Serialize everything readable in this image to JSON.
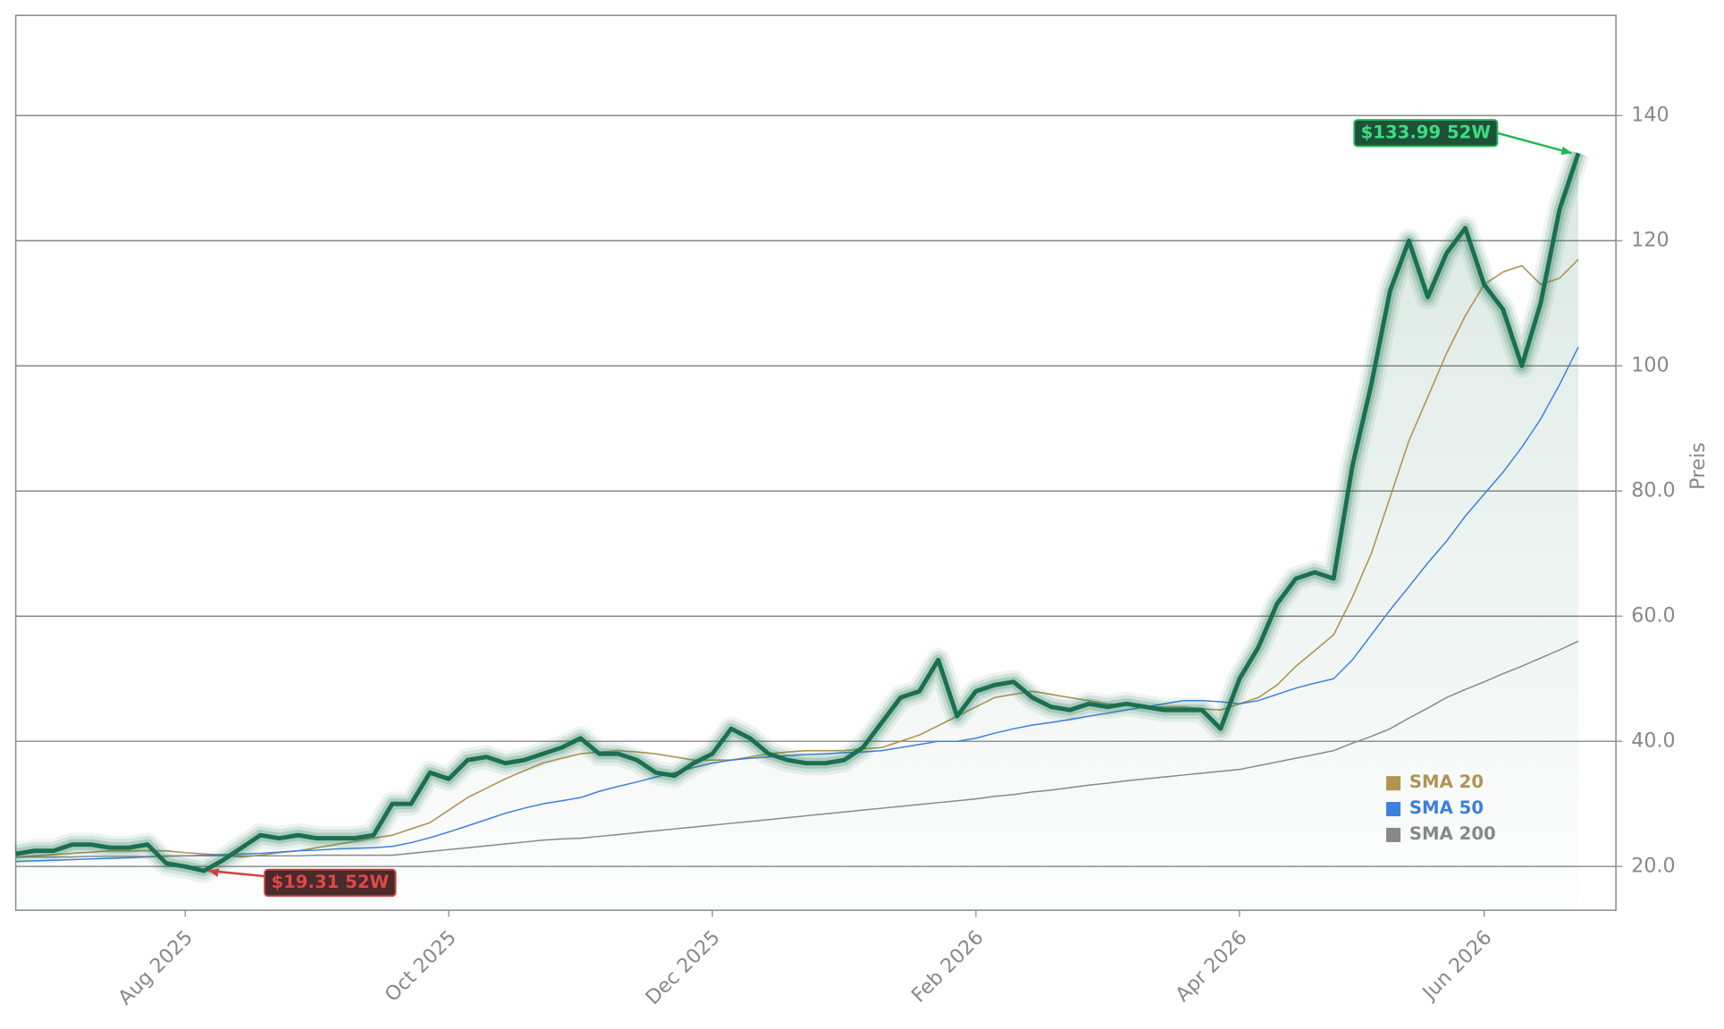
{
  "chart_data": {
    "type": "line",
    "y_label": "Preis",
    "categories": [
      null,
      null,
      null,
      null,
      null,
      null,
      null,
      null,
      null,
      "Aug 2025",
      null,
      null,
      null,
      null,
      null,
      null,
      null,
      null,
      null,
      null,
      null,
      null,
      null,
      "Oct 2025",
      null,
      null,
      null,
      null,
      null,
      null,
      null,
      null,
      null,
      null,
      null,
      null,
      null,
      "Dec 2025",
      null,
      null,
      null,
      null,
      null,
      null,
      null,
      null,
      null,
      null,
      null,
      null,
      null,
      "Feb 2026",
      null,
      null,
      null,
      null,
      null,
      null,
      null,
      null,
      null,
      null,
      null,
      null,
      null,
      "Apr 2026",
      null,
      null,
      null,
      null,
      null,
      null,
      null,
      null,
      null,
      null,
      null,
      null,
      "Jun 2026",
      null,
      null,
      null,
      null,
      null
    ],
    "series": [
      {
        "color": "#1a7050",
        "values": [
          22,
          22.5,
          22.5,
          23.5,
          23.5,
          23,
          23,
          23.5,
          20.5,
          20,
          19.31,
          21,
          23,
          25,
          24.5,
          25,
          24.5,
          24.5,
          24.5,
          25,
          30,
          30,
          35,
          34,
          37,
          37.5,
          36.5,
          37,
          38,
          39,
          40.5,
          38,
          38,
          37,
          35,
          34.5,
          36.5,
          38,
          42,
          40.5,
          38,
          37,
          36.5,
          36.5,
          37,
          39,
          43,
          47,
          48,
          53,
          44,
          48,
          49,
          49.5,
          47,
          45.5,
          45,
          46,
          45.5,
          46,
          45.5,
          45,
          45,
          45,
          42,
          50,
          55,
          62,
          66,
          67,
          66,
          84,
          97,
          112,
          120,
          111,
          118,
          122,
          113,
          109,
          100,
          110,
          125,
          133.99
        ]
      },
      {
        "name": "SMA 20",
        "color": "#b09550",
        "values": [
          21.5,
          21.7,
          21.9,
          22.1,
          22.3,
          22.5,
          22.5,
          22.5,
          22.5,
          22.2,
          22,
          21.8,
          21.5,
          21.8,
          22.2,
          22.5,
          23,
          23.5,
          24,
          24.5,
          25,
          26,
          27,
          29,
          31,
          32.5,
          34,
          35.3,
          36.5,
          37.3,
          38,
          38.3,
          38.5,
          38.3,
          38,
          37.5,
          37,
          37,
          37,
          37.5,
          38,
          38.3,
          38.5,
          38.5,
          38.5,
          38.8,
          39,
          40,
          41,
          42.5,
          44,
          45.5,
          47,
          47.5,
          48,
          47.5,
          47,
          46.5,
          46,
          45.8,
          45.5,
          45.5,
          45.5,
          45.2,
          45,
          46,
          47,
          49,
          52,
          54.5,
          57,
          63,
          70,
          79,
          88,
          95,
          102,
          108,
          113,
          115,
          116,
          113,
          114,
          117
        ]
      },
      {
        "name": "SMA 50",
        "color": "#3b7fe0",
        "values": [
          20.8,
          20.9,
          21,
          21.1,
          21.2,
          21.3,
          21.4,
          21.5,
          21.7,
          21.7,
          21.8,
          21.9,
          22,
          22.1,
          22.3,
          22.5,
          22.6,
          22.8,
          22.9,
          23,
          23.2,
          23.8,
          24.6,
          25.5,
          26.5,
          27.5,
          28.5,
          29.3,
          30,
          30.5,
          31,
          32,
          32.8,
          33.5,
          34.3,
          35,
          35.8,
          36.5,
          37,
          37.3,
          37.5,
          37.7,
          37.9,
          38,
          38.2,
          38.3,
          38.5,
          39,
          39.5,
          40,
          40,
          40.5,
          41.3,
          42,
          42.6,
          43,
          43.5,
          44,
          44.5,
          45,
          45.5,
          46,
          46.5,
          46.5,
          46.3,
          46,
          46.5,
          47.5,
          48.5,
          49.3,
          50,
          53,
          57,
          61,
          64.7,
          68.5,
          72,
          76,
          79.5,
          83,
          87,
          91.5,
          97,
          103
        ]
      },
      {
        "name": "SMA 200",
        "color": "#888888",
        "values": [
          21.5,
          21.5,
          21.5,
          21.5,
          21.6,
          21.6,
          21.6,
          21.6,
          21.6,
          21.7,
          21.7,
          21.7,
          21.7,
          21.7,
          21.7,
          21.7,
          21.8,
          21.8,
          21.8,
          21.8,
          21.8,
          22.1,
          22.4,
          22.7,
          23,
          23.3,
          23.6,
          23.9,
          24.2,
          24.4,
          24.5,
          24.8,
          25.1,
          25.4,
          25.7,
          26,
          26.3,
          26.6,
          26.9,
          27.2,
          27.5,
          27.8,
          28.1,
          28.4,
          28.7,
          29,
          29.3,
          29.6,
          29.9,
          30.2,
          30.5,
          30.8,
          31.2,
          31.5,
          31.9,
          32.2,
          32.6,
          33,
          33.3,
          33.7,
          34,
          34.3,
          34.6,
          34.9,
          35.2,
          35.5,
          36.1,
          36.7,
          37.3,
          37.9,
          38.5,
          39.7,
          40.8,
          42,
          43.7,
          45.3,
          47,
          48.3,
          49.5,
          50.8,
          52,
          53.3,
          54.6,
          56
        ]
      }
    ],
    "annotations": {
      "high": "$133.99 52W",
      "low": "$19.31 52W"
    },
    "ylim": [
      13,
      156
    ],
    "yticks": [
      {
        "value": 20,
        "label": "20.0"
      },
      {
        "value": 40,
        "label": "40.0"
      },
      {
        "value": 60,
        "label": "60.0"
      },
      {
        "value": 80,
        "label": "80.0"
      },
      100,
      120,
      140
    ],
    "grid": true
  }
}
